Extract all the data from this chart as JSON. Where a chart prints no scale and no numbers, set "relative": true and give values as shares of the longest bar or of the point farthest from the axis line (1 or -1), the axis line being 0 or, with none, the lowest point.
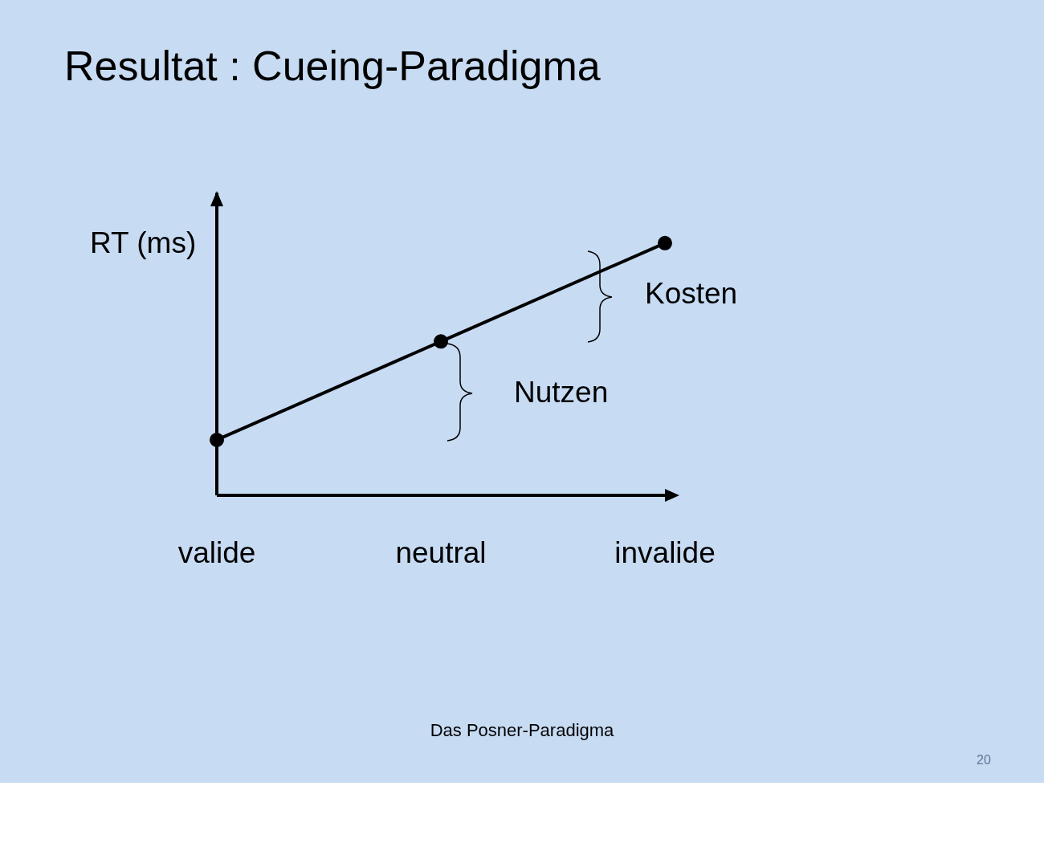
{
  "chart_data": {
    "type": "line",
    "title": "Resultat : Cueing-Paradigma",
    "ylabel": "RT (ms)",
    "categories": [
      "valide",
      "neutral",
      "invalide"
    ],
    "values": [
      0.22,
      0.61,
      1
    ],
    "color": "#000000",
    "relative": true,
    "marker": "circle",
    "annotations": [
      "Kosten",
      "Nutzen",
      "Das Posner-Paradigma",
      "20"
    ]
  }
}
